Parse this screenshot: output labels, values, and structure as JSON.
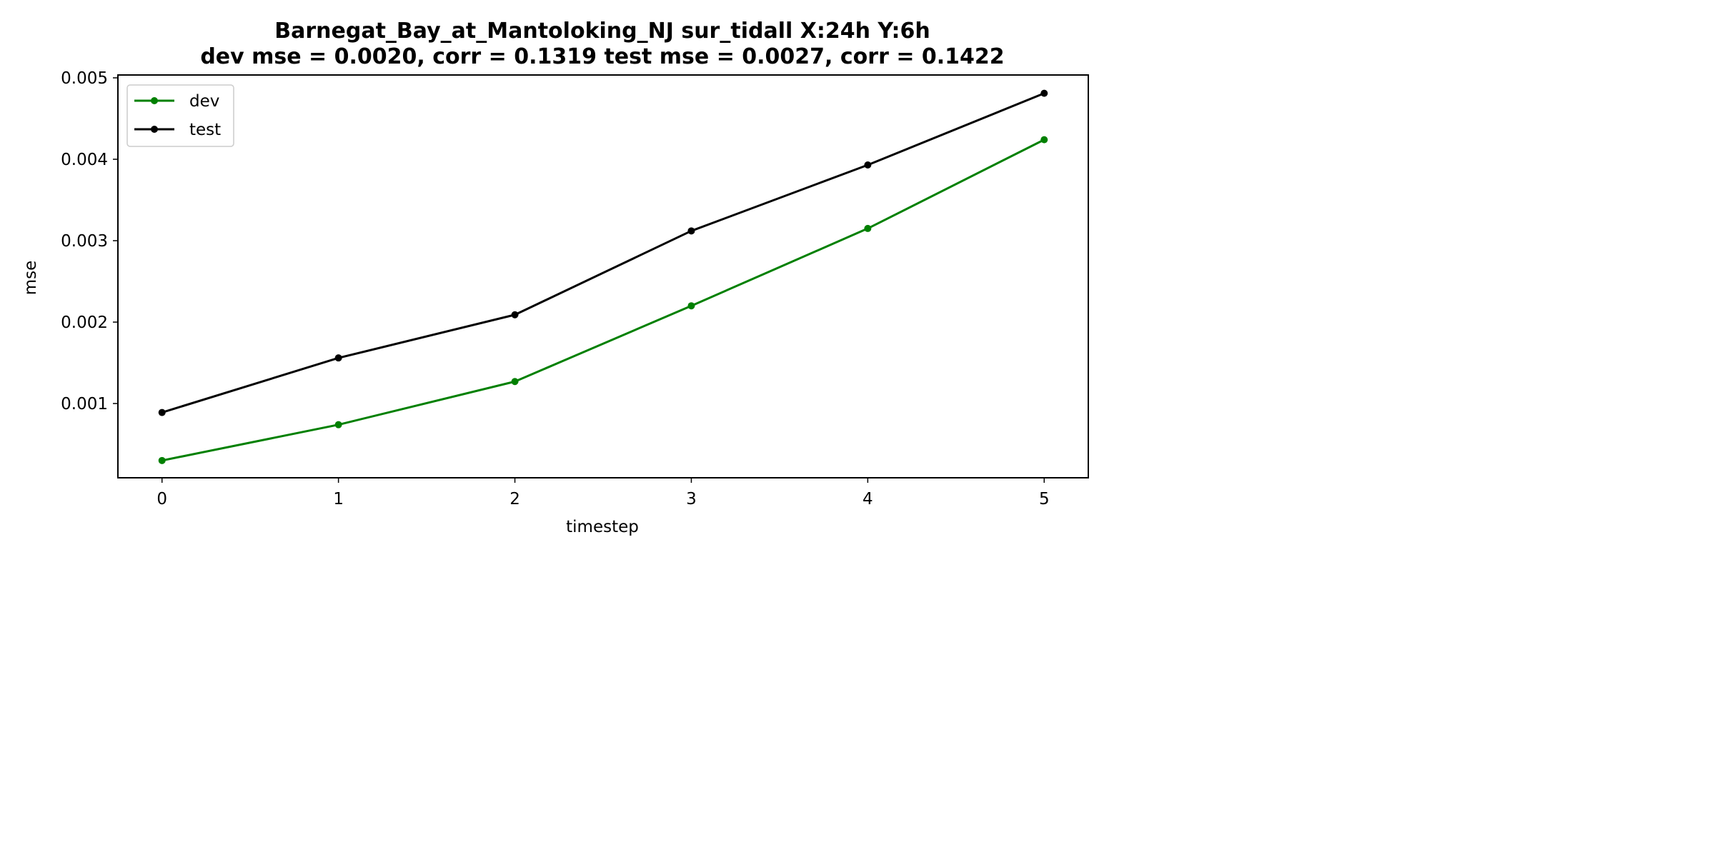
{
  "chart_data": {
    "type": "line",
    "title_line1": "Barnegat_Bay_at_Mantoloking_NJ   sur_tidall   X:24h   Y:6h",
    "title_line2": "dev mse = 0.0020, corr = 0.1319   test mse = 0.0027, corr = 0.1422",
    "xlabel": "timestep",
    "ylabel": "mse",
    "x": [
      0,
      1,
      2,
      3,
      4,
      5
    ],
    "x_tick_labels": [
      "0",
      "1",
      "2",
      "3",
      "4",
      "5"
    ],
    "xlim": [
      -0.25,
      5.25
    ],
    "y_ticks": [
      0.001,
      0.002,
      0.003,
      0.004,
      0.005
    ],
    "y_tick_labels": [
      "0.001",
      "0.002",
      "0.003",
      "0.004",
      "0.005"
    ],
    "ylim": [
      8.8e-05,
      0.005035
    ],
    "grid": false,
    "legend_position": "upper-left",
    "series": [
      {
        "name": "dev",
        "color": "#008000",
        "marker": "circle",
        "values": [
          0.0003,
          0.00074,
          0.00127,
          0.0022,
          0.00315,
          0.00424
        ]
      },
      {
        "name": "test",
        "color": "#000000",
        "marker": "circle",
        "values": [
          0.00089,
          0.00156,
          0.00209,
          0.00312,
          0.00393,
          0.00481
        ]
      }
    ]
  }
}
